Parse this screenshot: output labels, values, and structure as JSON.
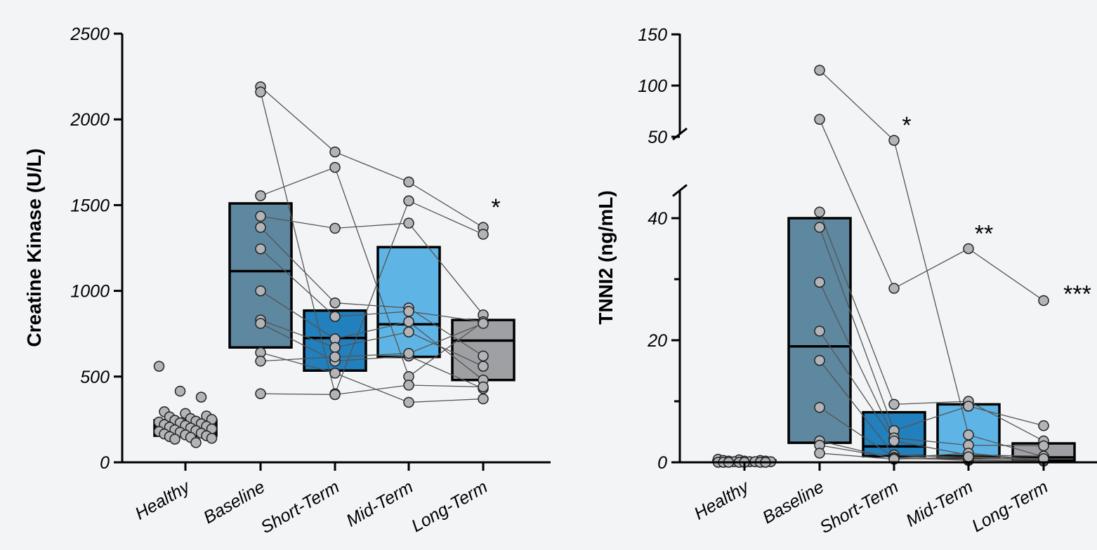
{
  "chart_data": [
    {
      "type": "box",
      "ylabel": "Creatine Kinase (U/L)",
      "categories": [
        "Healthy",
        "Baseline",
        "Short-Term",
        "Mid-Term",
        "Long-Term"
      ],
      "yticks": [
        "0",
        "500",
        "1000",
        "1500",
        "2000",
        "2500"
      ],
      "ylim": [
        0,
        2500
      ],
      "colors": [
        "#9fa0a4",
        "#5e87a0",
        "#2180bd",
        "#5eb4e4",
        "#9fa0a4"
      ],
      "boxes": [
        {
          "category": "Healthy",
          "q1": 155,
          "median": 185,
          "q3": 245
        },
        {
          "category": "Baseline",
          "q1": 670,
          "median": 1115,
          "q3": 1510
        },
        {
          "category": "Short-Term",
          "q1": 535,
          "median": 725,
          "q3": 885
        },
        {
          "category": "Mid-Term",
          "q1": 615,
          "median": 805,
          "q3": 1255
        },
        {
          "category": "Long-Term",
          "q1": 480,
          "median": 710,
          "q3": 830
        }
      ],
      "healthy_points": [
        560,
        415,
        380,
        295,
        285,
        270,
        265,
        255,
        250,
        245,
        240,
        235,
        230,
        225,
        220,
        215,
        210,
        205,
        200,
        195,
        190,
        185,
        180,
        175,
        170,
        165,
        160,
        155,
        150,
        145,
        140,
        135,
        115
      ],
      "paired_series": [
        {
          "values": [
            2190,
            1810,
            1635,
            1370
          ]
        },
        {
          "values": [
            2160,
            400,
            1525,
            1330
          ]
        },
        {
          "values": [
            1555,
            1720,
            500,
            820
          ]
        },
        {
          "values": [
            1435,
            1365,
            1395,
            860
          ]
        },
        {
          "values": [
            1370,
            930,
            900,
            620
          ]
        },
        {
          "values": [
            1245,
            850,
            880,
            820
          ]
        },
        {
          "values": [
            1000,
            720,
            820,
            480
          ]
        },
        {
          "values": [
            830,
            670,
            760,
            560
          ]
        },
        {
          "values": [
            810,
            590,
            620,
            430
          ]
        },
        {
          "values": [
            640,
            520,
            350,
            370
          ]
        },
        {
          "values": [
            590,
            615,
            635,
            810
          ]
        },
        {
          "values": [
            400,
            395,
            450,
            440
          ]
        }
      ],
      "annotations": [
        {
          "category": "Long-Term",
          "text": "*",
          "y": 1400
        }
      ]
    },
    {
      "type": "box",
      "ylabel": "TNNI2 (ng/mL)",
      "categories": [
        "Healthy",
        "Baseline",
        "Short-Term",
        "Mid-Term",
        "Long-Term"
      ],
      "yticks": [
        "0",
        "20",
        "40",
        "50",
        "100",
        "150"
      ],
      "ylim": [
        0,
        150
      ],
      "axis_break": [
        45,
        50
      ],
      "colors": [
        "#9fa0a4",
        "#5e87a0",
        "#2180bd",
        "#5eb4e4",
        "#9fa0a4"
      ],
      "boxes": [
        {
          "category": "Healthy",
          "q1": 0.1,
          "median": 0.2,
          "q3": 0.3
        },
        {
          "category": "Baseline",
          "q1": 3.2,
          "median": 19.0,
          "q3": 40.0
        },
        {
          "category": "Short-Term",
          "q1": 1.0,
          "median": 2.6,
          "q3": 8.2
        },
        {
          "category": "Mid-Term",
          "q1": 0.8,
          "median": 1.0,
          "q3": 9.5
        },
        {
          "category": "Long-Term",
          "q1": 0.3,
          "median": 0.8,
          "q3": 3.1
        }
      ],
      "healthy_points": [
        0.5,
        0.4,
        0.3,
        0.3,
        0.2,
        0.2,
        0.2,
        0.1,
        0.1,
        0.1,
        0.1,
        0.0,
        0.0,
        0.0,
        0.0,
        0.0,
        0.0,
        0.0
      ],
      "paired_series": [
        {
          "values": [
            115,
            46.5,
            4.5,
            0.9
          ]
        },
        {
          "values": [
            67,
            28.5,
            35.0,
            26.5
          ]
        },
        {
          "values": [
            41,
            9.5,
            10.0,
            3.5
          ]
        },
        {
          "values": [
            38.5,
            5.2,
            9.2,
            6.0
          ]
        },
        {
          "values": [
            29.5,
            4.0,
            2.8,
            2.7
          ]
        },
        {
          "values": [
            21.5,
            3.5,
            1.2,
            1.0
          ]
        },
        {
          "values": [
            16.7,
            1.2,
            0.8,
            0.5
          ]
        },
        {
          "values": [
            9.0,
            0.8,
            0.3,
            0.2
          ]
        },
        {
          "values": [
            3.5,
            0.6,
            0.5,
            0.4
          ]
        },
        {
          "values": [
            2.8,
            0.7,
            1.5,
            0.3
          ]
        },
        {
          "values": [
            1.5,
            0.5,
            0.9,
            0.6
          ]
        }
      ],
      "annotations": [
        {
          "category": "Short-Term",
          "text": "*",
          "y": 46.5
        },
        {
          "category": "Mid-Term",
          "text": "**",
          "y": 35.0
        },
        {
          "category": "Long-Term",
          "text": "***",
          "y": 26.5
        }
      ]
    }
  ]
}
